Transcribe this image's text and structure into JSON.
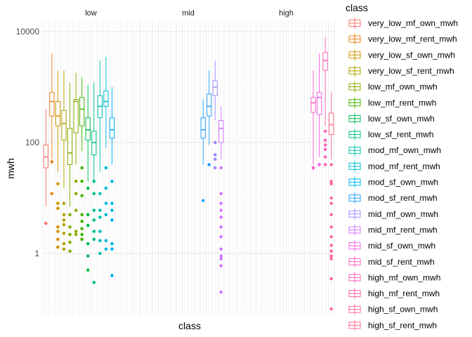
{
  "chart_data": {
    "type": "boxplot",
    "title": "",
    "xlabel": "class",
    "ylabel": "mwh",
    "y_scale": "log10",
    "ylim": [
      0.1,
      20000
    ],
    "y_ticks": [
      {
        "value": 1,
        "label": "1"
      },
      {
        "value": 100,
        "label": "100"
      },
      {
        "value": 10000,
        "label": "10000"
      }
    ],
    "facets": [
      "low",
      "mid",
      "high"
    ],
    "legend": {
      "title": "class",
      "position": "right",
      "entries": [
        {
          "label": "very_low_mf_own_mwh",
          "color": "#F8766D"
        },
        {
          "label": "very_low_mf_rent_mwh",
          "color": "#E7851E"
        },
        {
          "label": "very_low_sf_own_mwh",
          "color": "#D09400"
        },
        {
          "label": "very_low_sf_rent_mwh",
          "color": "#B2A100"
        },
        {
          "label": "low_mf_own_mwh",
          "color": "#89AC00"
        },
        {
          "label": "low_mf_rent_mwh",
          "color": "#45B500"
        },
        {
          "label": "low_sf_own_mwh",
          "color": "#00BC51"
        },
        {
          "label": "low_sf_rent_mwh",
          "color": "#00C087"
        },
        {
          "label": "mod_mf_own_mwh",
          "color": "#00C0B2"
        },
        {
          "label": "mod_mf_rent_mwh",
          "color": "#00BCD6"
        },
        {
          "label": "mod_sf_own_mwh",
          "color": "#00B3F2"
        },
        {
          "label": "mod_sf_rent_mwh",
          "color": "#29A3FF"
        },
        {
          "label": "mid_mf_own_mwh",
          "color": "#9C8DFF"
        },
        {
          "label": "mid_mf_rent_mwh",
          "color": "#D277FF"
        },
        {
          "label": "mid_sf_own_mwh",
          "color": "#F166E8"
        },
        {
          "label": "mid_sf_rent_mwh",
          "color": "#FF61C7"
        },
        {
          "label": "high_mf_own_mwh",
          "color": "#FF62BC"
        },
        {
          "label": "high_mf_rent_mwh",
          "color": "#FF65AA"
        },
        {
          "label": "high_sf_own_mwh",
          "color": "#FF689F"
        },
        {
          "label": "high_sf_rent_mwh",
          "color": "#FF6C91"
        }
      ]
    },
    "series": [
      {
        "facet": "low",
        "slot": 1,
        "color": "#F8766D",
        "whisker_low": 7,
        "q1": 35,
        "median": 55,
        "q3": 90,
        "whisker_high": 400,
        "outliers": [
          3.5
        ]
      },
      {
        "facet": "low",
        "slot": 2,
        "color": "#E7851E",
        "whisker_low": 50,
        "q1": 300,
        "median": 550,
        "q3": 800,
        "whisker_high": 4000,
        "outliers": [
          45,
          12,
          12
        ]
      },
      {
        "facet": "low",
        "slot": 3,
        "color": "#D09400",
        "whisker_low": 30,
        "q1": 200,
        "median": 300,
        "q3": 550,
        "whisker_high": 2000,
        "outliers": [
          18,
          8,
          6.5,
          3,
          2.5,
          1.8,
          1.3
        ]
      },
      {
        "facet": "low",
        "slot": 4,
        "color": "#B2A100",
        "whisker_low": 15,
        "q1": 110,
        "median": 220,
        "q3": 380,
        "whisker_high": 2000,
        "outliers": [
          8,
          5,
          4,
          3.3,
          2.3,
          1.5,
          1.2
        ]
      },
      {
        "facet": "low",
        "slot": 5,
        "color": "#89AC00",
        "whisker_low": 7,
        "q1": 40,
        "median": 65,
        "q3": 180,
        "whisker_high": 1200,
        "outliers": [
          5,
          3,
          2.2,
          1.6,
          1.1
        ]
      },
      {
        "facet": "low",
        "slot": 6,
        "color": "#89AC00",
        "whisker_low": 40,
        "q1": 150,
        "median": 550,
        "q3": 600,
        "whisker_high": 1800,
        "outliers": [
          20,
          12,
          6,
          2.5,
          2.2
        ]
      },
      {
        "facet": "low",
        "slot": 7,
        "color": "#45B500",
        "whisker_low": 70,
        "q1": 200,
        "median": 400,
        "q3": 650,
        "whisker_high": 1500,
        "outliers": [
          35,
          20,
          11,
          5,
          3.8,
          2.8,
          2.2,
          1.8
        ]
      },
      {
        "facet": "low",
        "slot": 8,
        "color": "#00BC51",
        "whisker_low": 20,
        "q1": 110,
        "median": 170,
        "q3": 280,
        "whisker_high": 1100,
        "outliers": [
          15,
          5,
          3.2,
          1.5,
          0.9,
          0.5
        ]
      },
      {
        "facet": "low",
        "slot": 9,
        "color": "#00C087",
        "whisker_low": 20,
        "q1": 60,
        "median": 100,
        "q3": 160,
        "whisker_high": 1200,
        "outliers": [
          20,
          12,
          6,
          4,
          2.5,
          1.8,
          0.3
        ]
      },
      {
        "facet": "low",
        "slot": 10,
        "color": "#00C0B2",
        "whisker_low": 30,
        "q1": 280,
        "median": 450,
        "q3": 700,
        "whisker_high": 3000,
        "outliers": [
          12,
          6,
          4.5,
          2.5,
          1.7,
          1
        ]
      },
      {
        "facet": "low",
        "slot": 11,
        "color": "#00BCD6",
        "whisker_low": 80,
        "q1": 450,
        "median": 550,
        "q3": 850,
        "whisker_high": 3500,
        "outliers": [
          35,
          15,
          8,
          5,
          1.7,
          1.2
        ]
      },
      {
        "facet": "low",
        "slot": 12,
        "color": "#00B3F2",
        "whisker_low": 40,
        "q1": 120,
        "median": 170,
        "q3": 280,
        "whisker_high": 1000,
        "outliers": [
          20,
          8,
          6,
          4,
          1.5,
          1.2,
          0.4
        ]
      },
      {
        "facet": "mid",
        "slot": 11,
        "color": "#29A3FF",
        "whisker_low": 40,
        "q1": 120,
        "median": 170,
        "q3": 280,
        "whisker_high": 600,
        "outliers": [
          9
        ]
      },
      {
        "facet": "mid",
        "slot": 12,
        "color": "#29A3FF",
        "whisker_low": 90,
        "q1": 300,
        "median": 450,
        "q3": 750,
        "whisker_high": 2000,
        "outliers": [
          40
        ]
      },
      {
        "facet": "mid",
        "slot": 13,
        "color": "#9C8DFF",
        "whisker_low": 250,
        "q1": 700,
        "median": 1000,
        "q3": 1300,
        "whisker_high": 3000,
        "outliers": [
          100,
          60,
          50,
          35
        ]
      },
      {
        "facet": "mid",
        "slot": 14,
        "color": "#D277FF",
        "whisker_low": 50,
        "q1": 100,
        "median": 180,
        "q3": 250,
        "whisker_high": 450,
        "outliers": [
          35,
          12,
          8,
          6,
          4.5,
          3,
          2,
          1.2,
          0.9,
          0.8,
          0.6,
          0.2
        ]
      },
      {
        "facet": "high",
        "slot": 13,
        "color": "#FF61C7",
        "whisker_low": 40,
        "q1": 350,
        "median": 520,
        "q3": 650,
        "whisker_high": 2000,
        "outliers": [
          35,
          35
        ]
      },
      {
        "facet": "high",
        "slot": 14,
        "color": "#F166E8",
        "whisker_low": 55,
        "q1": 320,
        "median": 650,
        "q3": 800,
        "whisker_high": 4000,
        "outliers": [
          40
        ]
      },
      {
        "facet": "high",
        "slot": 15,
        "color": "#FF62BC",
        "whisker_low": 200,
        "q1": 2000,
        "median": 3000,
        "q3": 4200,
        "whisker_high": 8000,
        "outliers": [
          160,
          110,
          90,
          75,
          55,
          40
        ]
      },
      {
        "facet": "high",
        "slot": 16,
        "color": "#FF6C91",
        "whisker_low": 50,
        "q1": 140,
        "median": 210,
        "q3": 340,
        "whisker_high": 800,
        "outliers": [
          40,
          20,
          18,
          10,
          8,
          5,
          3,
          2,
          1.4,
          1.1,
          0.9,
          0.8,
          0.35,
          0.1
        ]
      }
    ]
  }
}
